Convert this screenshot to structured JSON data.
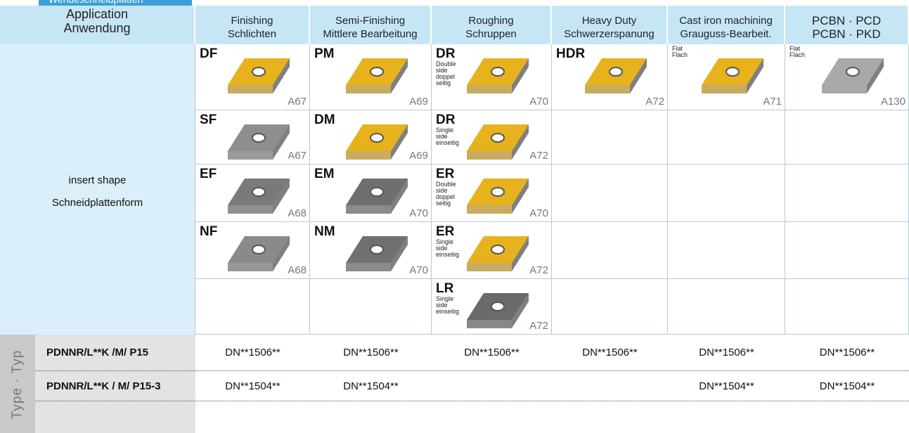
{
  "header": {
    "tab": "Wendeschneidplatten",
    "application": [
      "Application",
      "Anwendung"
    ]
  },
  "columns": [
    {
      "title": [
        "Finishing",
        "Schlichten"
      ]
    },
    {
      "title": [
        "Semi-Finishing",
        "Mittlere Bearbeitung"
      ]
    },
    {
      "title": [
        "Roughing",
        "Schruppen"
      ]
    },
    {
      "title": [
        "Heavy Duty",
        "Schwerzerspanung"
      ]
    },
    {
      "title": [
        "Cast iron machining",
        "Grauguss-Bearbeit."
      ]
    },
    {
      "title": [
        "PCBN · PCD",
        "PCBN · PKD"
      ]
    }
  ],
  "row_label": [
    "insert shape",
    "Schneidplattenform"
  ],
  "inserts": [
    [
      {
        "code": "DF",
        "page": "A67",
        "color": "#e8b21c"
      },
      {
        "code": "PM",
        "page": "A69",
        "color": "#e8b21c"
      },
      {
        "code": "DR",
        "note": [
          "Double",
          "side",
          "doppel",
          "seitig"
        ],
        "page": "A70",
        "color": "#e8b21c"
      },
      {
        "code": "HDR",
        "page": "A72",
        "color": "#e8b21c"
      },
      {
        "note": [
          "Flat",
          "Flach"
        ],
        "page": "A71",
        "color": "#e8b21c"
      },
      {
        "note": [
          "Flat",
          "Flach"
        ],
        "page": "A130",
        "color": "#a9a9a9"
      }
    ],
    [
      {
        "code": "SF",
        "page": "A67",
        "color": "#8e8e8e"
      },
      {
        "code": "DM",
        "page": "A69",
        "color": "#e8b21c"
      },
      {
        "code": "DR",
        "note": [
          "Single",
          "side",
          "einseitig"
        ],
        "page": "A72",
        "color": "#e8b21c"
      },
      null,
      null,
      null
    ],
    [
      {
        "code": "EF",
        "page": "A68",
        "color": "#7a7a7a"
      },
      {
        "code": "EM",
        "page": "A70",
        "color": "#6f6f6f"
      },
      {
        "code": "ER",
        "note": [
          "Double",
          "side",
          "doppel",
          "seitig"
        ],
        "page": "A70",
        "color": "#e8b21c"
      },
      null,
      null,
      null
    ],
    [
      {
        "code": "NF",
        "page": "A68",
        "color": "#8a8a8a"
      },
      {
        "code": "NM",
        "page": "A70",
        "color": "#707070"
      },
      {
        "code": "ER",
        "note": [
          "Single",
          "side",
          "einseitig"
        ],
        "page": "A72",
        "color": "#e8b21c"
      },
      null,
      null,
      null
    ],
    [
      null,
      null,
      {
        "code": "LR",
        "note": [
          "Single",
          "side",
          "einseitig"
        ],
        "page": "A72",
        "color": "#6a6a6a"
      },
      null,
      null,
      null
    ]
  ],
  "type_label": "Type · Typ",
  "type_rows": [
    {
      "name": "PDNNR/L**K /M/ P15",
      "cells": [
        "DN**1506**",
        "DN**1506**",
        "DN**1506**",
        "DN**1506**",
        "DN**1506**",
        "DN**1506**"
      ]
    },
    {
      "name": "PDNNR/L**K / M/ P15-3",
      "cells": [
        "DN**1504**",
        "DN**1504**",
        null,
        null,
        "DN**1504**",
        "DN**1504**"
      ]
    }
  ]
}
